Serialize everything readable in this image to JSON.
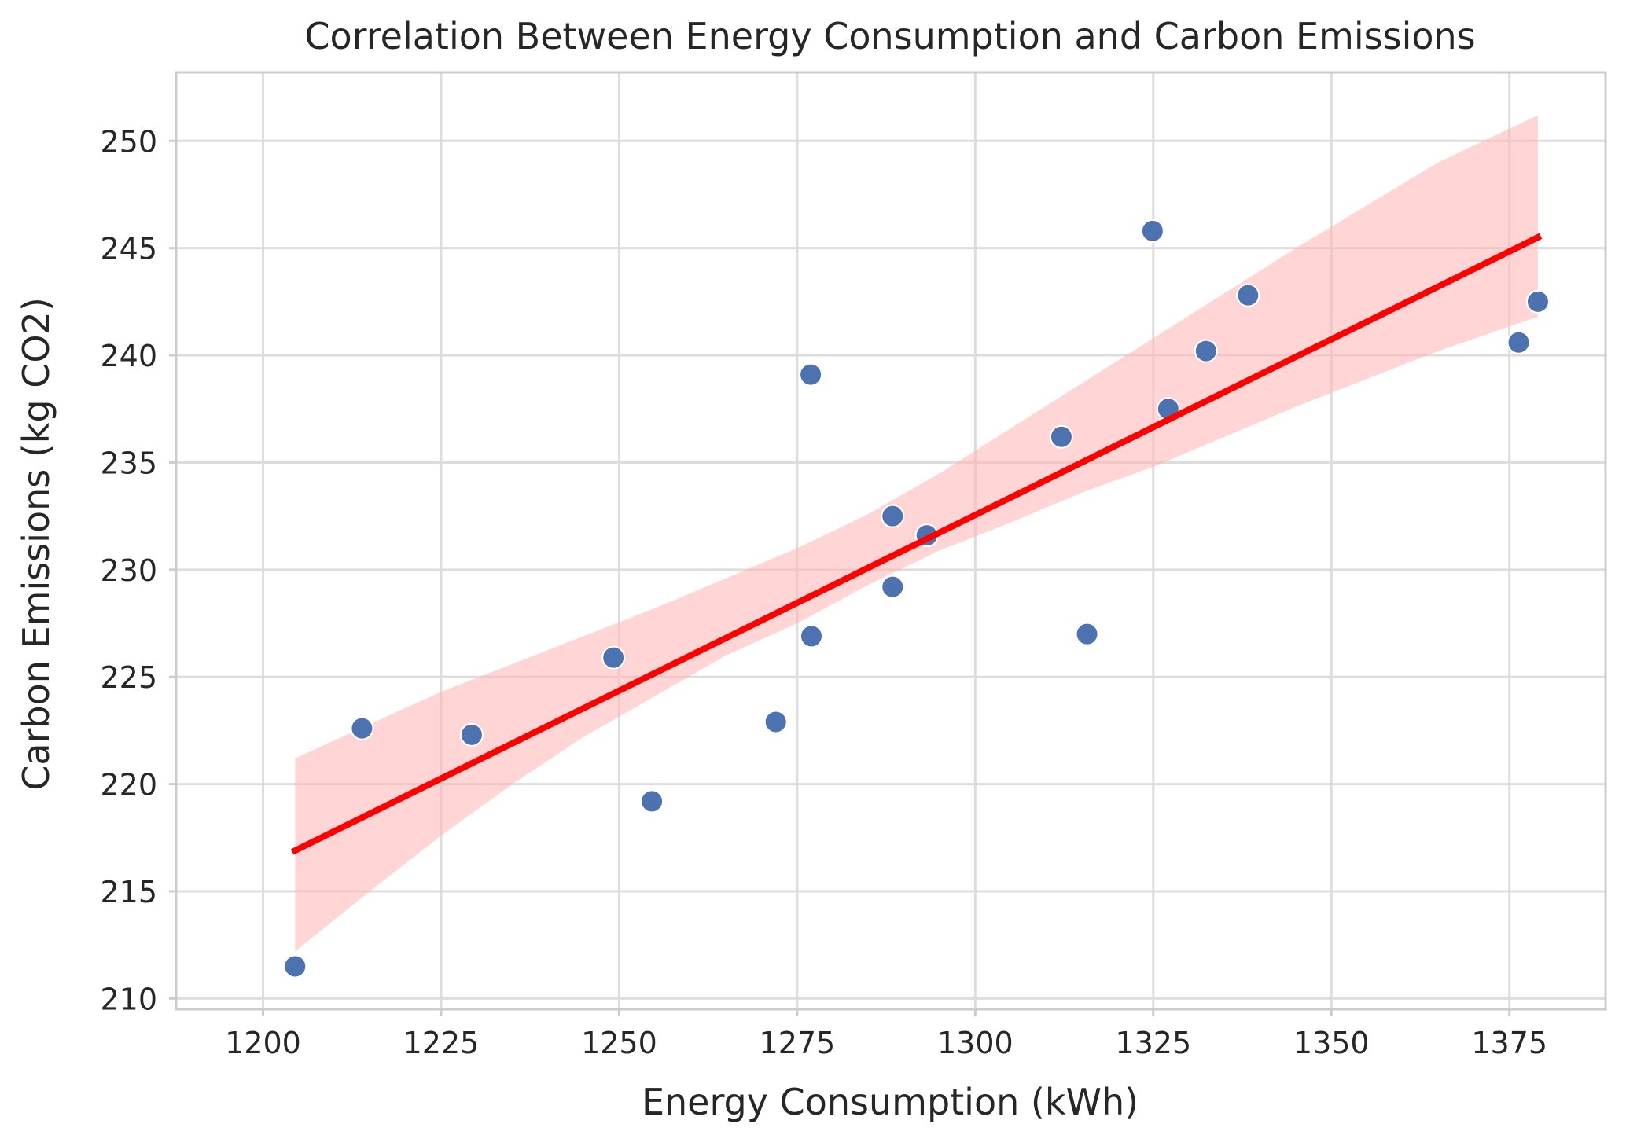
{
  "chart_data": {
    "type": "scatter",
    "title": "Correlation Between Energy Consumption and Carbon Emissions",
    "xlabel": "Energy Consumption (kWh)",
    "ylabel": "Carbon Emissions (kg CO2)",
    "xlim": [
      1187.8,
      1388.5
    ],
    "ylim": [
      209.5,
      253.2
    ],
    "xticks": [
      1200,
      1225,
      1250,
      1275,
      1300,
      1325,
      1350,
      1375
    ],
    "yticks": [
      210,
      215,
      220,
      225,
      230,
      235,
      240,
      245,
      250
    ],
    "xtick_labels": [
      "1200",
      "1225",
      "1250",
      "1275",
      "1300",
      "1325",
      "1350",
      "1375"
    ],
    "ytick_labels": [
      "210",
      "215",
      "220",
      "225",
      "230",
      "235",
      "240",
      "245",
      "250"
    ],
    "grid": true,
    "points": [
      {
        "x": 1204.5,
        "y": 211.5
      },
      {
        "x": 1213.9,
        "y": 222.6
      },
      {
        "x": 1229.3,
        "y": 222.3
      },
      {
        "x": 1249.2,
        "y": 225.9
      },
      {
        "x": 1254.6,
        "y": 219.2
      },
      {
        "x": 1272.0,
        "y": 222.9
      },
      {
        "x": 1276.9,
        "y": 239.1
      },
      {
        "x": 1277.0,
        "y": 226.9
      },
      {
        "x": 1288.4,
        "y": 232.5
      },
      {
        "x": 1288.4,
        "y": 229.2
      },
      {
        "x": 1293.2,
        "y": 231.6
      },
      {
        "x": 1312.1,
        "y": 236.2
      },
      {
        "x": 1315.7,
        "y": 227.0
      },
      {
        "x": 1324.9,
        "y": 245.8
      },
      {
        "x": 1327.1,
        "y": 237.5
      },
      {
        "x": 1332.4,
        "y": 240.2
      },
      {
        "x": 1338.3,
        "y": 242.8
      },
      {
        "x": 1376.3,
        "y": 240.6
      },
      {
        "x": 1379.0,
        "y": 242.5
      }
    ],
    "regression": {
      "x_start": 1204.5,
      "y_start": 216.9,
      "x_end": 1379.0,
      "y_end": 245.5
    },
    "confidence_band": [
      {
        "x": 1204.5,
        "low": 212.2,
        "high": 221.2
      },
      {
        "x": 1215,
        "low": 215.0,
        "high": 222.8
      },
      {
        "x": 1225,
        "low": 217.6,
        "high": 224.3
      },
      {
        "x": 1235,
        "low": 220.0,
        "high": 225.6
      },
      {
        "x": 1245,
        "low": 222.2,
        "high": 226.9
      },
      {
        "x": 1255,
        "low": 224.1,
        "high": 228.2
      },
      {
        "x": 1265,
        "low": 226.0,
        "high": 229.6
      },
      {
        "x": 1275,
        "low": 227.5,
        "high": 231.0
      },
      {
        "x": 1285,
        "low": 229.3,
        "high": 232.6
      },
      {
        "x": 1295,
        "low": 230.9,
        "high": 234.5
      },
      {
        "x": 1305,
        "low": 232.2,
        "high": 236.6
      },
      {
        "x": 1315,
        "low": 233.6,
        "high": 238.7
      },
      {
        "x": 1325,
        "low": 234.8,
        "high": 240.8
      },
      {
        "x": 1335,
        "low": 236.2,
        "high": 242.9
      },
      {
        "x": 1345,
        "low": 237.6,
        "high": 245.0
      },
      {
        "x": 1355,
        "low": 238.9,
        "high": 247.0
      },
      {
        "x": 1365,
        "low": 240.2,
        "high": 249.0
      },
      {
        "x": 1379.0,
        "low": 241.8,
        "high": 251.2
      }
    ],
    "colors": {
      "point": "#4c72b0",
      "line": "#ff0000",
      "band": "#ffb3b3",
      "grid": "#dddddd",
      "frame": "#cccccc",
      "background": "#ffffff"
    }
  }
}
